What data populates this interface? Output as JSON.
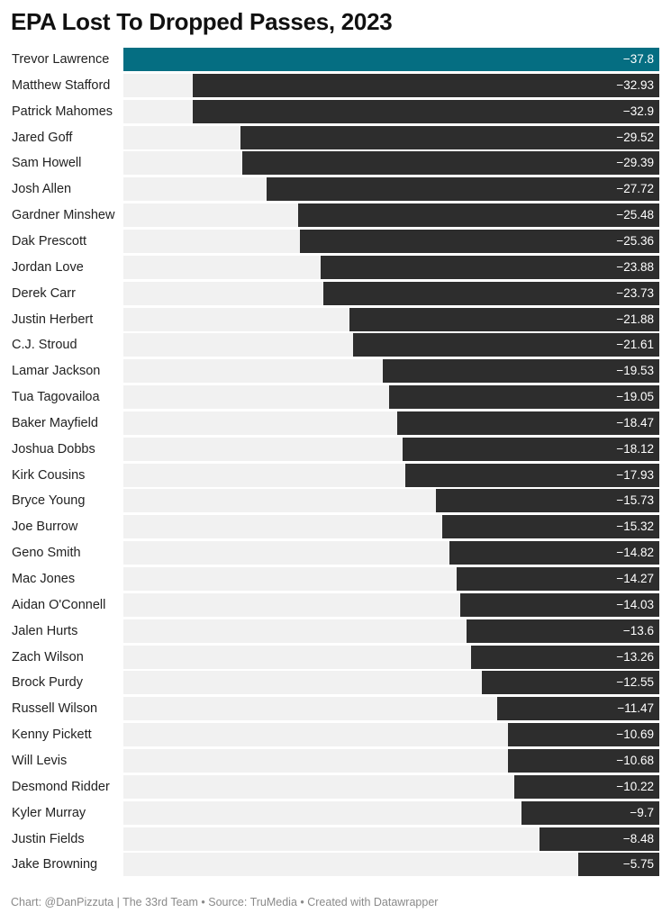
{
  "colors": {
    "highlight": "#056e82",
    "bar": "#2d2d2d",
    "track": "#f1f1f1",
    "value_text": "#ffffff"
  },
  "chart_data": {
    "type": "bar",
    "orientation": "horizontal",
    "title": "EPA Lost To Dropped Passes, 2023",
    "xlabel": "",
    "ylabel": "",
    "xlim": [
      -37.8,
      0
    ],
    "grid": false,
    "highlight_category": "Trevor Lawrence",
    "categories": [
      "Trevor Lawrence",
      "Matthew Stafford",
      "Patrick Mahomes",
      "Jared Goff",
      "Sam Howell",
      "Josh Allen",
      "Gardner Minshew",
      "Dak Prescott",
      "Jordan Love",
      "Derek Carr",
      "Justin Herbert",
      "C.J. Stroud",
      "Lamar Jackson",
      "Tua Tagovailoa",
      "Baker Mayfield",
      "Joshua Dobbs",
      "Kirk Cousins",
      "Bryce Young",
      "Joe Burrow",
      "Geno Smith",
      "Mac Jones",
      "Aidan O'Connell",
      "Jalen Hurts",
      "Zach Wilson",
      "Brock Purdy",
      "Russell Wilson",
      "Kenny Pickett",
      "Will Levis",
      "Desmond Ridder",
      "Kyler Murray",
      "Justin Fields",
      "Jake Browning"
    ],
    "values": [
      -37.8,
      -32.93,
      -32.9,
      -29.52,
      -29.39,
      -27.72,
      -25.48,
      -25.36,
      -23.88,
      -23.73,
      -21.88,
      -21.61,
      -19.53,
      -19.05,
      -18.47,
      -18.12,
      -17.93,
      -15.73,
      -15.32,
      -14.82,
      -14.27,
      -14.03,
      -13.6,
      -13.26,
      -12.55,
      -11.47,
      -10.69,
      -10.68,
      -10.22,
      -9.7,
      -8.48,
      -5.75
    ],
    "value_labels": [
      "−37.8",
      "−32.93",
      "−32.9",
      "−29.52",
      "−29.39",
      "−27.72",
      "−25.48",
      "−25.36",
      "−23.88",
      "−23.73",
      "−21.88",
      "−21.61",
      "−19.53",
      "−19.05",
      "−18.47",
      "−18.12",
      "−17.93",
      "−15.73",
      "−15.32",
      "−14.82",
      "−14.27",
      "−14.03",
      "−13.6",
      "−13.26",
      "−12.55",
      "−11.47",
      "−10.69",
      "−10.68",
      "−10.22",
      "−9.7",
      "−8.48",
      "−5.75"
    ]
  },
  "footer": {
    "credit": "Chart: @DanPizzuta | The 33rd Team • Source: TruMedia • Created with Datawrapper"
  }
}
